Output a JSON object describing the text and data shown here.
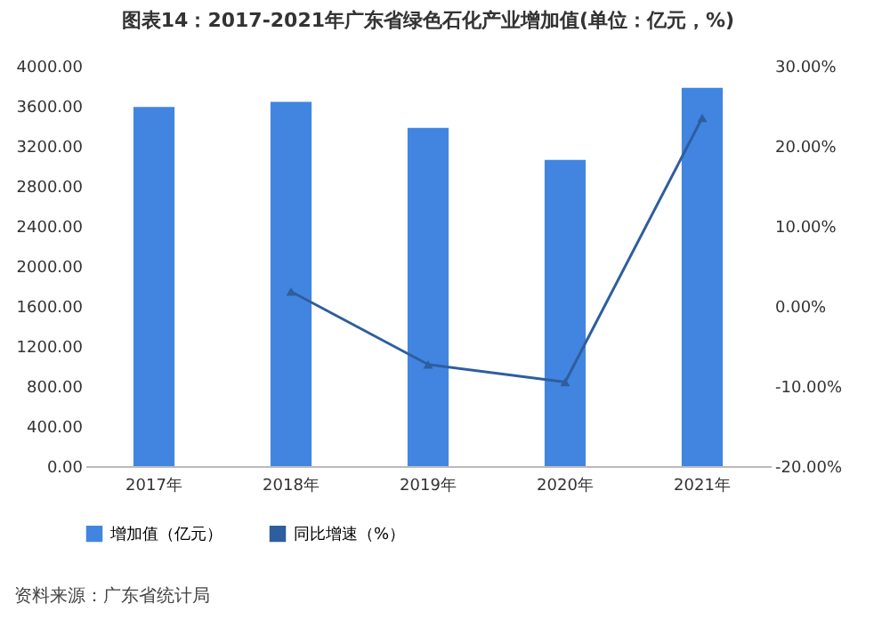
{
  "chart_data": {
    "type": "bar",
    "title": "图表14：2017-2021年广东省绿色石化产业增加值(单位：亿元，%)",
    "categories": [
      "2017年",
      "2018年",
      "2019年",
      "2020年",
      "2021年"
    ],
    "series": [
      {
        "name": "增加值（亿元）",
        "color": "#4285e0",
        "values": [
          3590,
          3640,
          3380,
          3060,
          3780
        ]
      },
      {
        "name": "同比增速（%）",
        "type": "line",
        "axis": "y2",
        "color": "#2e5e9e",
        "values": [
          null,
          1.8,
          -7.3,
          -9.5,
          23.5
        ],
        "marker": "triangle",
        "line_style": "solid"
      }
    ],
    "ylim": [
      0,
      4000
    ],
    "yticks": [
      {
        "value": 0,
        "label": "0.00"
      },
      {
        "value": 400,
        "label": "400.00"
      },
      {
        "value": 800,
        "label": "800.00"
      },
      {
        "value": 1200,
        "label": "1200.00"
      },
      {
        "value": 1600,
        "label": "1600.00"
      },
      {
        "value": 2000,
        "label": "2000.00"
      },
      {
        "value": 2400,
        "label": "2400.00"
      },
      {
        "value": 2800,
        "label": "2800.00"
      },
      {
        "value": 3200,
        "label": "3200.00"
      },
      {
        "value": 3600,
        "label": "3600.00"
      },
      {
        "value": 4000,
        "label": "4000.00"
      }
    ],
    "y2lim": [
      -20,
      30
    ],
    "y2ticks": [
      {
        "value": -20,
        "label": "-20.00%"
      },
      {
        "value": -10,
        "label": "-10.00%"
      },
      {
        "value": 0,
        "label": "0.00%"
      },
      {
        "value": 10,
        "label": "10.00%"
      },
      {
        "value": 20,
        "label": "20.00%"
      },
      {
        "value": 30,
        "label": "30.00%"
      }
    ],
    "legend": "bottom",
    "grid": false,
    "annotations": [
      "资料来源：广东省统计局"
    ]
  }
}
